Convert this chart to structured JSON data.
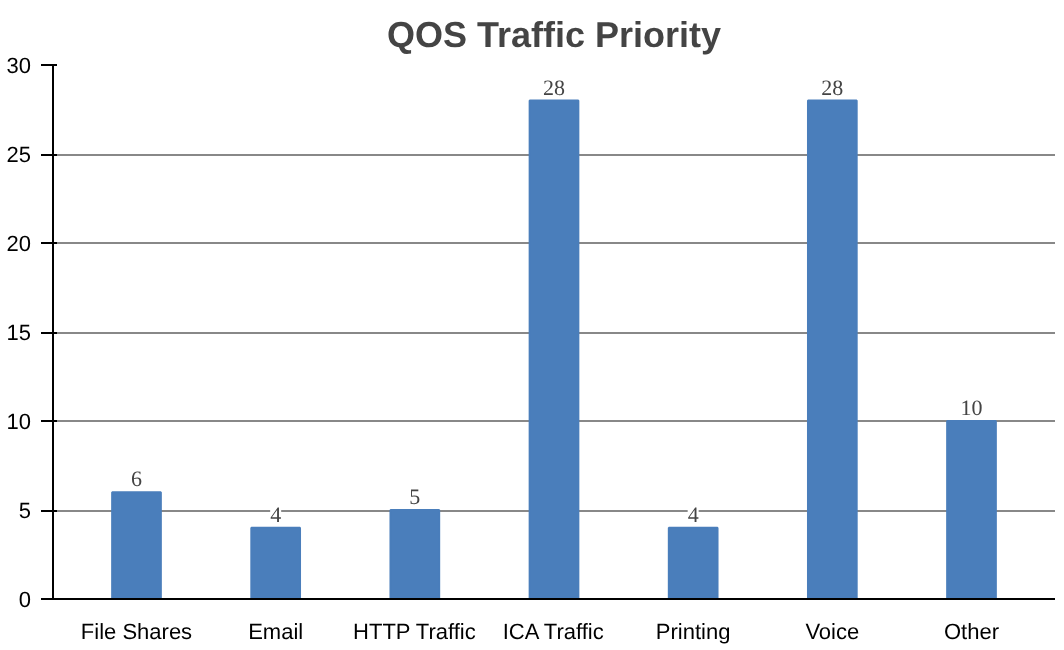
{
  "chart_data": {
    "type": "bar",
    "title": "QOS Traffic Priority",
    "categories": [
      "File Shares",
      "Email",
      "HTTP Traffic",
      "ICA Traffic",
      "Printing",
      "Voice",
      "Other"
    ],
    "values": [
      6,
      4,
      5,
      28,
      4,
      28,
      10
    ],
    "color": "#4a7ebb",
    "ylim": [
      0,
      30
    ],
    "yticks": [
      0,
      5,
      10,
      15,
      20,
      25,
      30
    ],
    "grid": "y",
    "data_labels": true
  }
}
